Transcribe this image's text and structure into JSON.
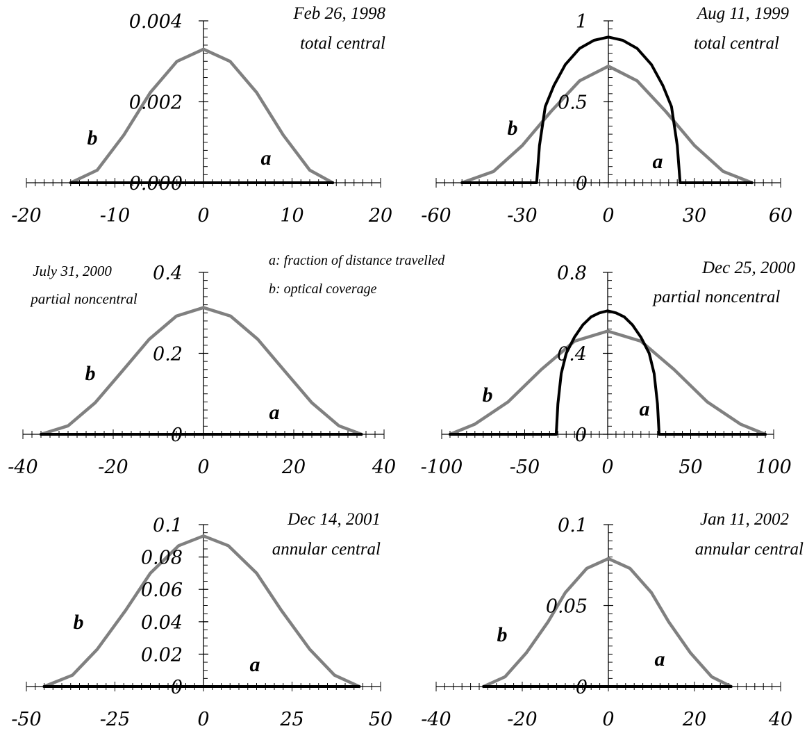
{
  "legend": {
    "a": "a:  fraction of distance travelled",
    "b": "b: optical coverage"
  },
  "colors": {
    "a": "#000000",
    "b": "#808080"
  },
  "chart_data": [
    {
      "type": "line",
      "annotation": [
        "Feb 26, 1998",
        "total central"
      ],
      "xlim": [
        -20,
        20
      ],
      "ylim": [
        0,
        0.004
      ],
      "xticks": [
        "-20",
        "-10",
        "0",
        "10",
        "20"
      ],
      "yticks": [
        "0.000",
        "0.002",
        "0.004"
      ],
      "series": [
        {
          "name": "a",
          "x": [
            -15,
            14.6
          ],
          "y": [
            0,
            0
          ]
        },
        {
          "name": "b",
          "x": [
            -15,
            -12,
            -9,
            -6,
            -3,
            0,
            3,
            6,
            9,
            12,
            14.6
          ],
          "y": [
            0,
            0.00031,
            0.00118,
            0.00223,
            0.003,
            0.0033,
            0.003,
            0.00223,
            0.00118,
            0.00031,
            0
          ]
        }
      ]
    },
    {
      "type": "line",
      "annotation": [
        "Aug 11, 1999",
        "total central"
      ],
      "xlim": [
        -60,
        60
      ],
      "ylim": [
        0,
        1
      ],
      "xticks": [
        "-60",
        "-30",
        "0",
        "30",
        "60"
      ],
      "yticks": [
        "0",
        "0.5",
        "1"
      ],
      "series": [
        {
          "name": "a",
          "x": [
            -51,
            -25,
            -24,
            -22,
            -19,
            -15,
            -10,
            -5,
            0,
            5,
            10,
            15,
            19,
            22,
            24,
            25,
            50
          ],
          "y": [
            0,
            0,
            0.23,
            0.47,
            0.6,
            0.73,
            0.83,
            0.88,
            0.9,
            0.88,
            0.83,
            0.73,
            0.6,
            0.47,
            0.23,
            0,
            0
          ]
        },
        {
          "name": "b",
          "x": [
            -51,
            -40,
            -30,
            -20,
            -10,
            0,
            10,
            20,
            30,
            40,
            50
          ],
          "y": [
            0,
            0.07,
            0.23,
            0.44,
            0.63,
            0.72,
            0.63,
            0.44,
            0.23,
            0.07,
            0
          ]
        }
      ]
    },
    {
      "type": "line",
      "annotation": [
        "July 31, 2000",
        "partial noncentral"
      ],
      "xlim": [
        -40,
        40
      ],
      "ylim": [
        0,
        0.4
      ],
      "xticks": [
        "-40",
        "-20",
        "0",
        "20",
        "40"
      ],
      "yticks": [
        "0",
        "0.2",
        "0.4"
      ],
      "series": [
        {
          "name": "a",
          "x": [
            -36,
            35
          ],
          "y": [
            0,
            0
          ]
        },
        {
          "name": "b",
          "x": [
            -36,
            -30,
            -24,
            -18,
            -12,
            -6,
            0,
            6,
            12,
            18,
            24,
            30,
            35
          ],
          "y": [
            0,
            0.021,
            0.078,
            0.156,
            0.235,
            0.292,
            0.313,
            0.292,
            0.235,
            0.156,
            0.078,
            0.021,
            0
          ]
        }
      ]
    },
    {
      "type": "line",
      "annotation": [
        "Dec 25, 2000",
        "partial noncentral"
      ],
      "xlim": [
        -100,
        100
      ],
      "ylim": [
        0,
        0.8
      ],
      "xticks": [
        "-100",
        "-50",
        "0",
        "50",
        "100"
      ],
      "yticks": [
        "0",
        "0.4",
        "0.8"
      ],
      "series": [
        {
          "name": "a",
          "x": [
            -95,
            -31,
            -30,
            -28,
            -25,
            -20,
            -15,
            -10,
            -5,
            0,
            5,
            10,
            15,
            20,
            25,
            28,
            30,
            31,
            95
          ],
          "y": [
            0,
            0,
            0.15,
            0.3,
            0.4,
            0.48,
            0.54,
            0.58,
            0.6,
            0.61,
            0.6,
            0.58,
            0.54,
            0.48,
            0.4,
            0.3,
            0.15,
            0,
            0
          ]
        },
        {
          "name": "b",
          "x": [
            -95,
            -80,
            -60,
            -40,
            -20,
            0,
            20,
            40,
            60,
            80,
            95
          ],
          "y": [
            0,
            0.05,
            0.16,
            0.32,
            0.46,
            0.51,
            0.46,
            0.32,
            0.16,
            0.05,
            0
          ]
        }
      ]
    },
    {
      "type": "line",
      "annotation": [
        "Dec 14, 2001",
        "annular central"
      ],
      "xlim": [
        -50,
        50
      ],
      "ylim": [
        0,
        0.1
      ],
      "xticks": [
        "-50",
        "-25",
        "0",
        "25",
        "50"
      ],
      "yticks": [
        "0",
        "0.02",
        "0.04",
        "0.06",
        "0.08",
        "0.1"
      ],
      "series": [
        {
          "name": "a",
          "x": [
            -45,
            44
          ],
          "y": [
            0,
            0
          ]
        },
        {
          "name": "b",
          "x": [
            -45,
            -37,
            -30,
            -22,
            -15,
            -7,
            0,
            7,
            15,
            22,
            30,
            37,
            44
          ],
          "y": [
            0,
            0.007,
            0.023,
            0.047,
            0.07,
            0.087,
            0.093,
            0.087,
            0.07,
            0.047,
            0.023,
            0.007,
            0
          ]
        }
      ]
    },
    {
      "type": "line",
      "annotation": [
        "Jan 11, 2002",
        "annular central"
      ],
      "xlim": [
        -40,
        40
      ],
      "ylim": [
        0,
        0.1
      ],
      "xticks": [
        "-40",
        "-20",
        "0",
        "20",
        "40"
      ],
      "yticks": [
        "0",
        "0.05",
        "0.1"
      ],
      "series": [
        {
          "name": "a",
          "x": [
            -29,
            28.5
          ],
          "y": [
            0,
            0
          ]
        },
        {
          "name": "b",
          "x": [
            -29,
            -24,
            -19,
            -14,
            -10,
            -5,
            0,
            5,
            10,
            14,
            19,
            24,
            28.5
          ],
          "y": [
            0,
            0.006,
            0.021,
            0.04,
            0.058,
            0.073,
            0.079,
            0.073,
            0.058,
            0.04,
            0.021,
            0.006,
            0
          ]
        }
      ]
    }
  ]
}
